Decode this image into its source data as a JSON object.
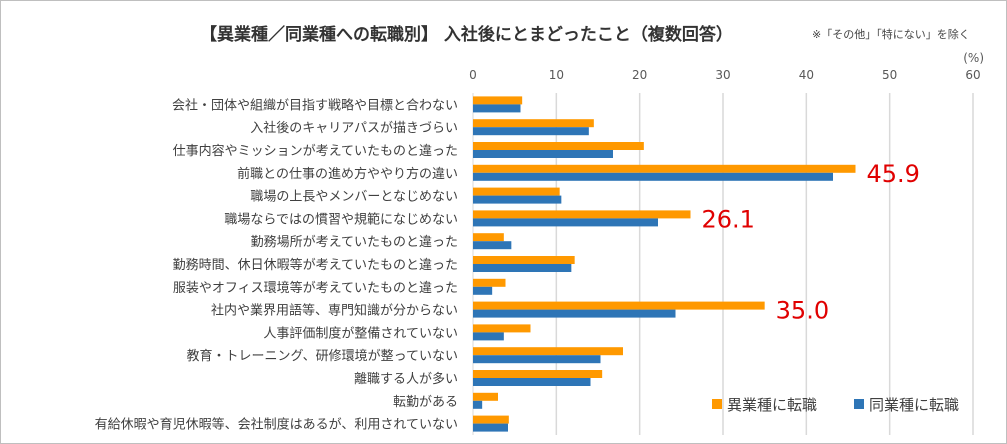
{
  "chart_data": {
    "type": "bar",
    "orientation": "horizontal",
    "title": "【異業種／同業種への転職別】 入社後にとまどったこと（複数回答）",
    "note": "※「その他」「特にない」を除く",
    "unit": "(%)",
    "xlim": [
      0,
      60
    ],
    "ticks": [
      0,
      10,
      20,
      30,
      40,
      50,
      60
    ],
    "grid": true,
    "legend_position": "bottom-right",
    "categories": [
      "会社・団体や組織が目指す戦略や目標と合わない",
      "入社後のキャリアパスが描きづらい",
      "仕事内容やミッションが考えていたものと違った",
      "前職との仕事の進め方ややり方の違い",
      "職場の上長やメンバーとなじめない",
      "職場ならではの慣習や規範になじめない",
      "勤務場所が考えていたものと違った",
      "勤務時間、休日休暇等が考えていたものと違った",
      "服装やオフィス環境等が考えていたものと違った",
      "社内や業界用語等、専門知識が分からない",
      "人事評価制度が整備されていない",
      "教育・トレーニング、研修環境が整っていない",
      "離職する人が多い",
      "転勤がある",
      "有給休暇や育児休暇等、会社制度はあるが、利用されていない"
    ],
    "series": [
      {
        "name": "異業種に転職",
        "color": "#ff9900",
        "values": [
          5.9,
          14.5,
          20.5,
          45.9,
          10.4,
          26.1,
          3.7,
          12.2,
          3.9,
          35.0,
          6.9,
          18.0,
          15.5,
          3.0,
          4.3
        ]
      },
      {
        "name": "同業種に転職",
        "color": "#2e75b6",
        "values": [
          5.7,
          13.9,
          16.8,
          43.2,
          10.6,
          22.2,
          4.6,
          11.8,
          2.3,
          24.3,
          3.7,
          15.3,
          14.1,
          1.1,
          4.2
        ]
      }
    ],
    "annotations": [
      {
        "category_index": 3,
        "text": "45.9",
        "color": "#e00000"
      },
      {
        "category_index": 5,
        "text": "26.1",
        "color": "#e00000"
      },
      {
        "category_index": 9,
        "text": "35.0",
        "color": "#e00000"
      }
    ]
  }
}
